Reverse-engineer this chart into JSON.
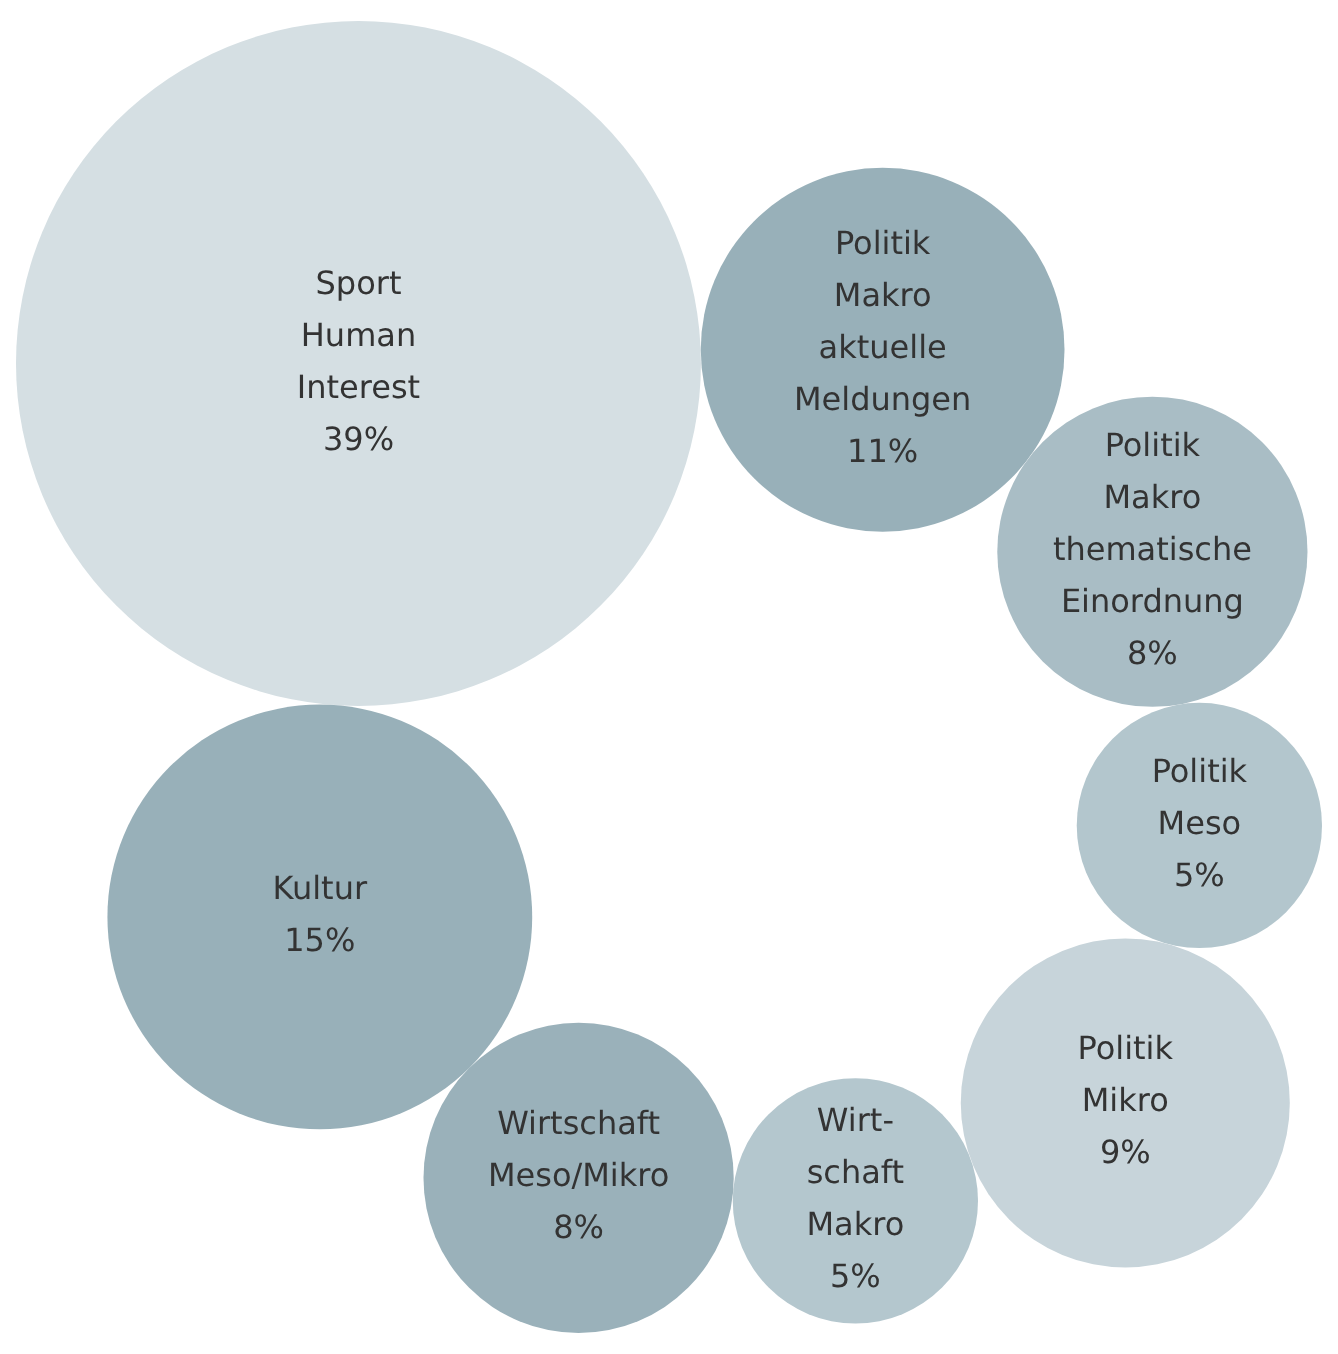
{
  "chart_data": {
    "type": "other",
    "categories": [
      "Sport\nHuman\nInterest",
      "Politik\nMakro\naktuelle\nMeldungen",
      "Politik\nMakro\nthematische\nEinordnung",
      "Politik\nMeso",
      "Politik\nMikro",
      "Wirt-\nschaft\nMakro",
      "Wirtschaft\nMeso/Mikro",
      "Kultur"
    ],
    "values": [
      39,
      11,
      8,
      5,
      9,
      5,
      8,
      15
    ],
    "value_labels": [
      "39%",
      "11%",
      "8%",
      "5%",
      "9%",
      "5%",
      "8%",
      "15%"
    ],
    "colors": [
      "#d5dfe3",
      "#98b0b9",
      "#a9bdc5",
      "#b3c6cd",
      "#c7d4da",
      "#b4c7ce",
      "#9ab1ba",
      "#98b0b9"
    ]
  }
}
